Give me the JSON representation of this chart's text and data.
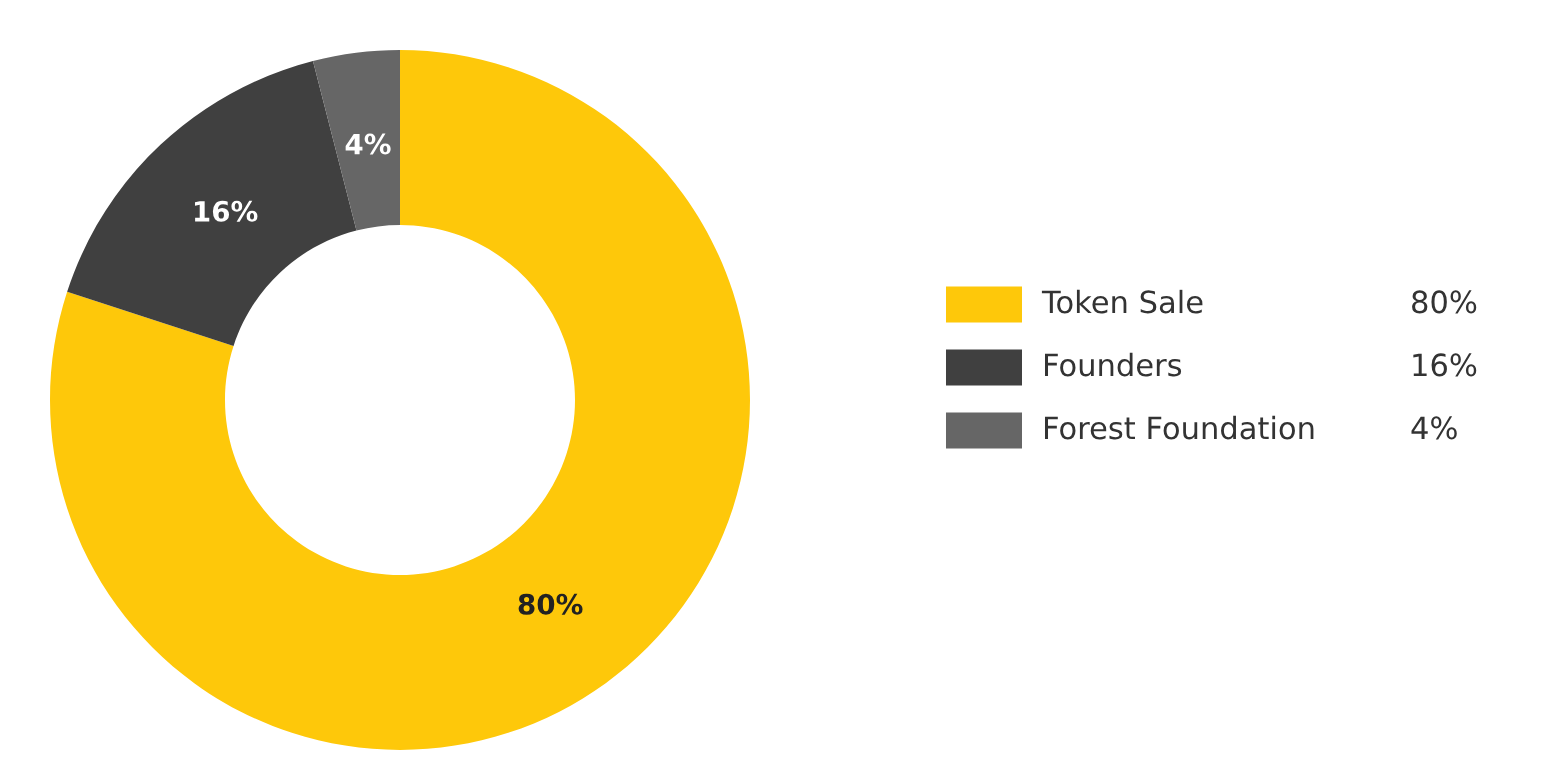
{
  "chart_data": {
    "type": "donut",
    "categories": [
      "Token Sale",
      "Founders",
      "Forest Foundation"
    ],
    "values": [
      80,
      16,
      4
    ],
    "colors": [
      "#fec80a",
      "#404040",
      "#666666"
    ],
    "value_labels": [
      "80%",
      "16%",
      "4%"
    ],
    "legend": "right"
  }
}
